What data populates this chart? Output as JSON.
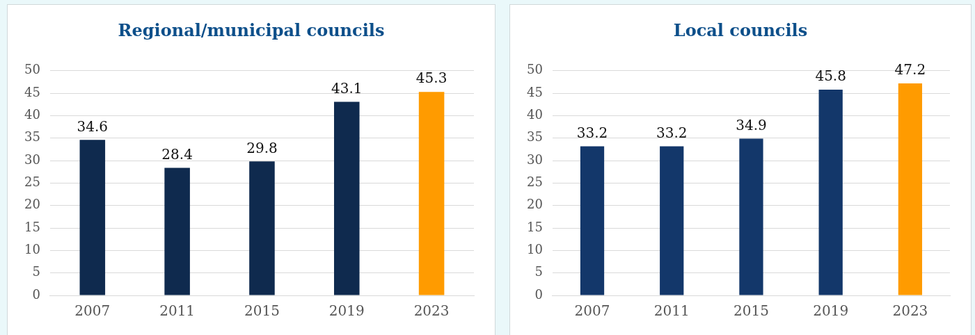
{
  "chart_data": [
    {
      "type": "bar",
      "title": "Regional/municipal councils",
      "categories": [
        "2007",
        "2011",
        "2015",
        "2019",
        "2023"
      ],
      "values": [
        34.6,
        28.4,
        29.8,
        43.1,
        45.3
      ],
      "colors": [
        "#0f2a4e",
        "#0f2a4e",
        "#0f2a4e",
        "#0f2a4e",
        "#ff9b00"
      ],
      "ylim": [
        0,
        50
      ],
      "yticks": [
        0,
        5,
        10,
        15,
        20,
        25,
        30,
        35,
        40,
        45,
        50
      ],
      "grid": "y",
      "data_labels": true,
      "legend": false
    },
    {
      "type": "bar",
      "title": "Local councils",
      "categories": [
        "2007",
        "2011",
        "2015",
        "2019",
        "2023"
      ],
      "values": [
        33.2,
        33.2,
        34.9,
        45.8,
        47.2
      ],
      "colors": [
        "#13376a",
        "#13376a",
        "#13376a",
        "#13376a",
        "#ff9b00"
      ],
      "ylim": [
        0,
        50
      ],
      "yticks": [
        0,
        5,
        10,
        15,
        20,
        25,
        30,
        35,
        40,
        45,
        50
      ],
      "grid": "y",
      "data_labels": true,
      "legend": false
    }
  ]
}
